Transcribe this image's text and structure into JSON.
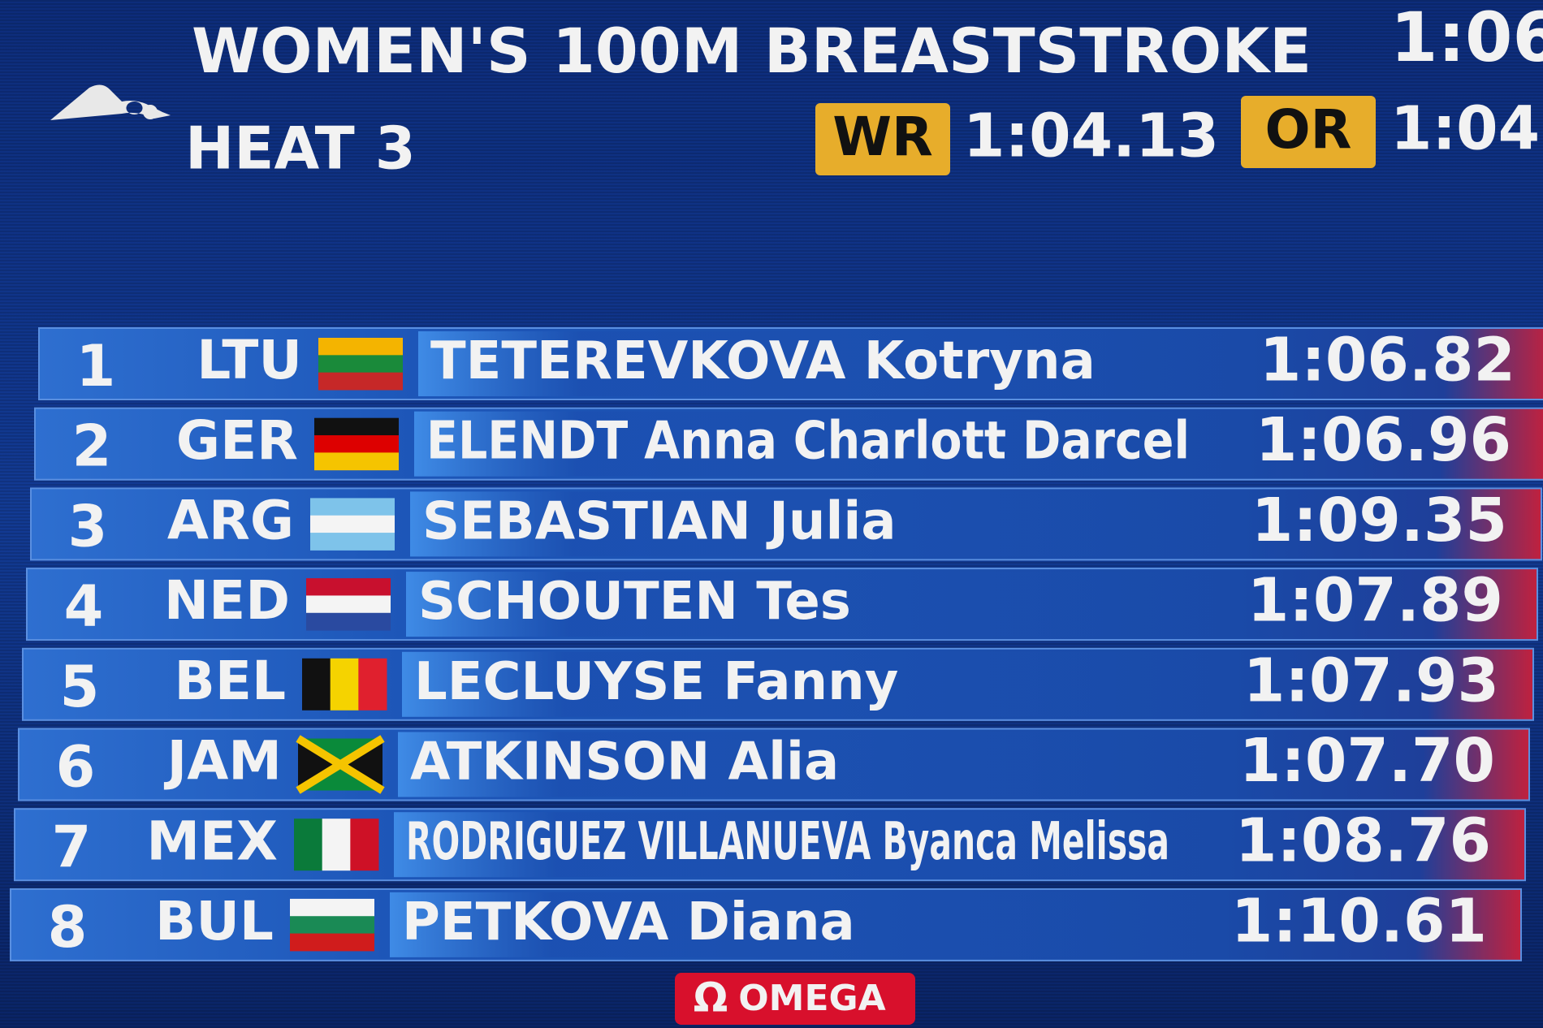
{
  "header": {
    "title": "WOMEN'S 100M BREASTSTROKE",
    "heat": "HEAT 3",
    "corner_time": "1:06",
    "records": [
      {
        "label": "WR",
        "time": "1:04.13"
      },
      {
        "label": "OR",
        "time": "1:04."
      }
    ]
  },
  "table": {
    "rows": [
      {
        "rank": "1",
        "country": "LTU",
        "surname": "TETEREVKOVA",
        "given": "Kotryna",
        "time": "1:06.82"
      },
      {
        "rank": "2",
        "country": "GER",
        "surname": "ELENDT",
        "given": "Anna Charlott Darcel",
        "time": "1:06.96"
      },
      {
        "rank": "3",
        "country": "ARG",
        "surname": "SEBASTIAN",
        "given": "Julia",
        "time": "1:09.35"
      },
      {
        "rank": "4",
        "country": "NED",
        "surname": "SCHOUTEN",
        "given": "Tes",
        "time": "1:07.89"
      },
      {
        "rank": "5",
        "country": "BEL",
        "surname": "LECLUYSE",
        "given": "Fanny",
        "time": "1:07.93"
      },
      {
        "rank": "6",
        "country": "JAM",
        "surname": "ATKINSON",
        "given": "Alia",
        "time": "1:07.70"
      },
      {
        "rank": "7",
        "country": "MEX",
        "surname": "RODRIGUEZ VILLANUEVA",
        "given": "Byanca Melissa",
        "time": "1:08.76"
      },
      {
        "rank": "8",
        "country": "BUL",
        "surname": "PETKOVA",
        "given": "Diana",
        "time": "1:10.61"
      }
    ]
  },
  "footer": {
    "symbol": "Ω",
    "sponsor": "OMEGA"
  }
}
